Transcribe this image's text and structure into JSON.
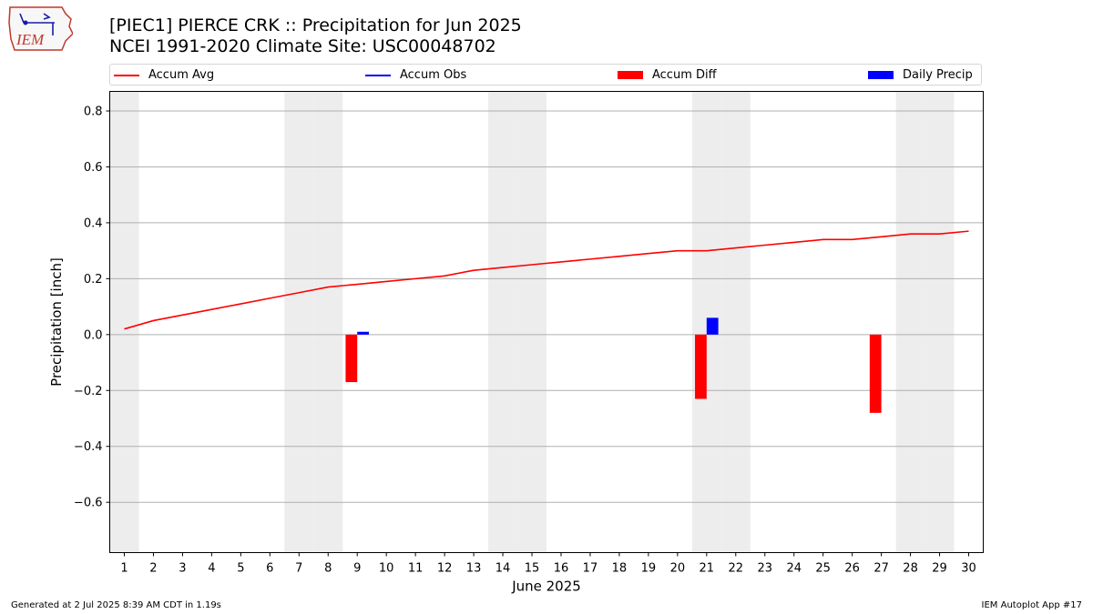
{
  "logo": {
    "text": "IEM"
  },
  "title_line1": "[PIEC1] PIERCE CRK :: Precipitation for Jun 2025",
  "title_line2": "NCEI 1991-2020 Climate Site: USC00048702",
  "legend": [
    {
      "label": "Accum Avg",
      "color": "#ff0000",
      "kind": "line"
    },
    {
      "label": "Accum Obs",
      "color": "#0000ff",
      "kind": "line"
    },
    {
      "label": "Accum Diff",
      "color": "#ff0000",
      "kind": "patch"
    },
    {
      "label": "Daily Precip",
      "color": "#0000ff",
      "kind": "patch"
    }
  ],
  "footer_left": "Generated at 2 Jul 2025 8:39 AM CDT in 1.19s",
  "footer_right": "IEM Autoplot App #17",
  "chart_data": {
    "type": "bar",
    "xlabel": "June 2025",
    "ylabel": "Precipitation [inch]",
    "days": [
      1,
      2,
      3,
      4,
      5,
      6,
      7,
      8,
      9,
      10,
      11,
      12,
      13,
      14,
      15,
      16,
      17,
      18,
      19,
      20,
      21,
      22,
      23,
      24,
      25,
      26,
      27,
      28,
      29,
      30
    ],
    "ylim": [
      -0.78,
      0.87
    ],
    "yticks": [
      -0.6,
      -0.4,
      -0.2,
      0.0,
      0.2,
      0.4,
      0.6,
      0.8
    ],
    "ytick_labels": [
      "−0.6",
      "−0.4",
      "−0.2",
      "0.0",
      "0.2",
      "0.4",
      "0.6",
      "0.8"
    ],
    "grid": "y",
    "weekend_days": [
      1,
      7,
      8,
      14,
      15,
      21,
      22,
      28,
      29
    ],
    "series": [
      {
        "name": "Accum Avg",
        "type": "line",
        "color": "#ff0000",
        "values": [
          0.02,
          0.05,
          0.07,
          0.09,
          0.11,
          0.13,
          0.15,
          0.17,
          0.18,
          0.19,
          0.2,
          0.21,
          0.23,
          0.24,
          0.25,
          0.26,
          0.27,
          0.28,
          0.29,
          0.3,
          0.3,
          0.31,
          0.32,
          0.33,
          0.34,
          0.34,
          0.35,
          0.36,
          0.36,
          0.37
        ]
      },
      {
        "name": "Accum Diff",
        "type": "bar",
        "color": "#ff0000",
        "points": [
          {
            "day": 9,
            "value": -0.17
          },
          {
            "day": 21,
            "value": -0.23
          },
          {
            "day": 27,
            "value": -0.28
          }
        ]
      },
      {
        "name": "Daily Precip",
        "type": "bar",
        "color": "#0000ff",
        "points": [
          {
            "day": 9,
            "value": 0.01
          },
          {
            "day": 21,
            "value": 0.06
          }
        ]
      }
    ]
  }
}
